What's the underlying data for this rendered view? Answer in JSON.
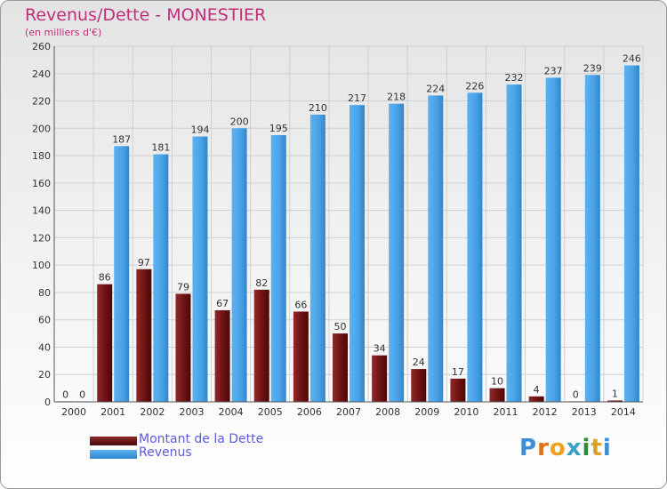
{
  "title": "Revenus/Dette - MONESTIER",
  "subtitle": "(en milliers d'€)",
  "brand": {
    "letters": [
      "P",
      "r",
      "o",
      "x",
      "i",
      "t",
      "i"
    ],
    "colors": [
      "#3c8fd6",
      "#e0701a",
      "#f0a020",
      "#3aa0c8",
      "#2c8c3c",
      "#e0a020",
      "#3c8fd6"
    ]
  },
  "colors": {
    "title": "#c0307a",
    "dette": "#6e1212",
    "revenus": "#4aa3e8",
    "legend_text": "#5b5be0",
    "grid": "#d0d0d0",
    "axis_text": "#333333"
  },
  "chart_data": {
    "type": "bar",
    "title": "Revenus/Dette - MONESTIER",
    "subtitle": "(en milliers d'€)",
    "categories": [
      "2000",
      "2001",
      "2002",
      "2003",
      "2004",
      "2005",
      "2006",
      "2007",
      "2008",
      "2009",
      "2010",
      "2011",
      "2012",
      "2013",
      "2014"
    ],
    "series": [
      {
        "name": "Montant de la Dette",
        "values": [
          0,
          86,
          97,
          79,
          67,
          82,
          66,
          50,
          34,
          24,
          17,
          10,
          4,
          0,
          1
        ]
      },
      {
        "name": "Revenus",
        "values": [
          0,
          187,
          181,
          194,
          200,
          195,
          210,
          217,
          218,
          224,
          226,
          232,
          237,
          239,
          246
        ]
      }
    ],
    "yticks": [
      0,
      20,
      40,
      60,
      80,
      100,
      120,
      140,
      160,
      180,
      200,
      220,
      240,
      260
    ],
    "ylim": [
      0,
      260
    ],
    "grid": true,
    "legend_position": "bottom-left"
  }
}
